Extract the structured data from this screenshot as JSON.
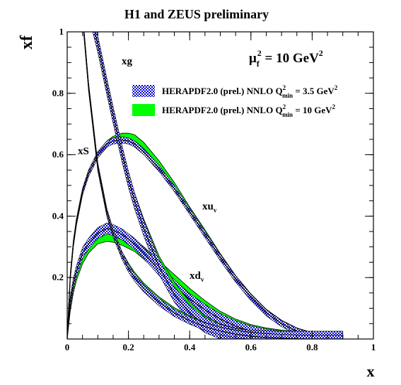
{
  "chart_data": {
    "type": "line",
    "title": "H1 and ZEUS preliminary",
    "xlabel": "x",
    "ylabel": "xf",
    "xlim": [
      0,
      1
    ],
    "ylim": [
      0,
      1
    ],
    "x_ticks": [
      "0",
      "0.2",
      "0.4",
      "0.6",
      "0.8",
      "1"
    ],
    "y_ticks": [
      "0.2",
      "0.4",
      "0.6",
      "0.8",
      "1"
    ],
    "annotation_scale": {
      "base": "μ",
      "sub": "f",
      "sup": "2",
      "text": " = 10 GeV",
      "sup2": "2"
    },
    "legend": [
      {
        "name": "HERAPDF2.0 (prel.) NNLO Q",
        "sup": "2",
        "sub": "min",
        "tail": " = 3.5 GeV",
        "tail_sup": "2",
        "style": "hatched-blue"
      },
      {
        "name": "HERAPDF2.0 (prel.) NNLO Q",
        "sup": "2",
        "sub": "min",
        "tail": " = 10 GeV",
        "tail_sup": "2",
        "style": "solid-green"
      }
    ],
    "curve_labels": [
      {
        "id": "xg",
        "text": "xg",
        "sub": ""
      },
      {
        "id": "xS",
        "text": "xS",
        "sub": ""
      },
      {
        "id": "xuv",
        "text": "xu",
        "sub": "v"
      },
      {
        "id": "xdv",
        "text": "xd",
        "sub": "v"
      }
    ],
    "x": [
      0.0,
      0.01,
      0.02,
      0.03,
      0.05,
      0.07,
      0.1,
      0.13,
      0.15,
      0.18,
      0.2,
      0.22,
      0.25,
      0.3,
      0.35,
      0.4,
      0.45,
      0.5,
      0.55,
      0.6,
      0.65,
      0.7,
      0.75,
      0.8,
      0.85,
      0.9
    ],
    "series": [
      {
        "id": "xuv",
        "band35": {
          "center": [
            0.0,
            0.2,
            0.31,
            0.38,
            0.48,
            0.54,
            0.6,
            0.635,
            0.645,
            0.648,
            0.645,
            0.635,
            0.61,
            0.555,
            0.49,
            0.415,
            0.34,
            0.265,
            0.195,
            0.135,
            0.085,
            0.05,
            0.025,
            0.01,
            0.004,
            0.0
          ],
          "err": 0.01
        },
        "band10": {
          "center": [
            0.0,
            0.2,
            0.31,
            0.38,
            0.48,
            0.54,
            0.6,
            0.635,
            0.65,
            0.66,
            0.66,
            0.655,
            0.63,
            0.57,
            0.5,
            0.42,
            0.345,
            0.268,
            0.197,
            0.137,
            0.087,
            0.051,
            0.026,
            0.011,
            0.004,
            0.0
          ],
          "err": 0.01
        }
      },
      {
        "id": "xdv",
        "band35": {
          "center": [
            0.0,
            0.12,
            0.18,
            0.22,
            0.28,
            0.31,
            0.345,
            0.36,
            0.355,
            0.34,
            0.325,
            0.31,
            0.28,
            0.225,
            0.175,
            0.13,
            0.095,
            0.065,
            0.042,
            0.025,
            0.015,
            0.008,
            0.004,
            0.002,
            0.001,
            0.0
          ],
          "err": 0.018
        },
        "band10": {
          "center": [
            0.0,
            0.11,
            0.17,
            0.21,
            0.265,
            0.3,
            0.33,
            0.338,
            0.335,
            0.325,
            0.315,
            0.305,
            0.28,
            0.235,
            0.19,
            0.145,
            0.105,
            0.07,
            0.045,
            0.027,
            0.016,
            0.009,
            0.005,
            0.002,
            0.001,
            0.0
          ],
          "err": 0.02
        }
      },
      {
        "id": "xg",
        "band35": {
          "center": [
            null,
            null,
            null,
            null,
            null,
            1.08,
            0.96,
            0.82,
            0.73,
            0.6,
            0.52,
            0.45,
            0.36,
            0.235,
            0.145,
            0.085,
            0.045,
            0.022,
            0.009,
            0.003,
            0.001,
            0.0,
            0.0,
            0.0,
            0.0,
            0.0
          ],
          "err": 0.025
        },
        "band10": {
          "center": [
            null,
            null,
            null,
            null,
            null,
            1.08,
            0.96,
            0.82,
            0.73,
            0.6,
            0.52,
            0.45,
            0.365,
            0.245,
            0.16,
            0.095,
            0.05,
            0.024,
            0.01,
            0.003,
            0.001,
            0.0,
            0.0,
            0.0,
            0.0,
            0.0
          ],
          "err": 0.025
        }
      },
      {
        "id": "xS",
        "band35": {
          "center": [
            null,
            null,
            null,
            null,
            1.05,
            0.82,
            0.56,
            0.41,
            0.345,
            0.27,
            0.23,
            0.2,
            0.165,
            0.12,
            0.085,
            0.06,
            0.04,
            0.026,
            0.016,
            0.009,
            0.005,
            0.003,
            0.001,
            0.0,
            0.0,
            0.0
          ],
          "err": 0.012
        },
        "band10": {
          "center": [
            null,
            null,
            null,
            null,
            1.05,
            0.82,
            0.56,
            0.41,
            0.345,
            0.27,
            0.235,
            0.205,
            0.17,
            0.125,
            0.09,
            0.063,
            0.042,
            0.027,
            0.017,
            0.01,
            0.006,
            0.003,
            0.001,
            0.0,
            0.0,
            0.0
          ],
          "err": 0.012
        }
      }
    ],
    "colors": {
      "green": "#00ff00",
      "blue": "#0000cc",
      "axis": "#000000"
    }
  }
}
